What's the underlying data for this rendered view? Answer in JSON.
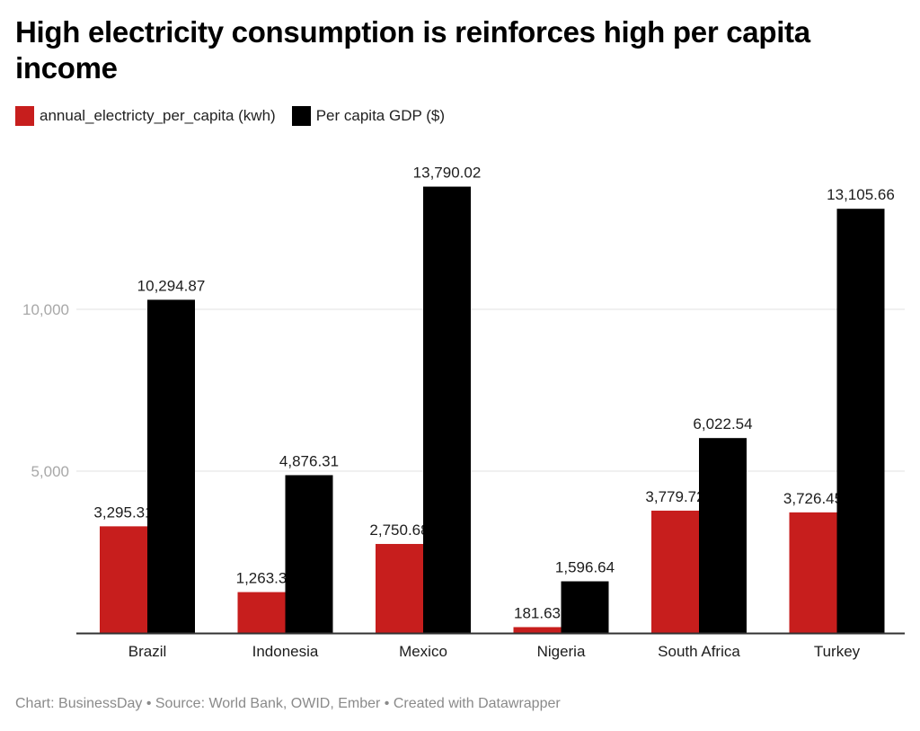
{
  "title": "High electricity consumption is reinforces high per capita income",
  "legend": [
    {
      "label": "annual_electricty_per_capita (kwh)",
      "color": "#c71e1d"
    },
    {
      "label": "Per capita GDP ($)",
      "color": "#000000"
    }
  ],
  "footer": "Chart: BusinessDay • Source: World Bank, OWID, Ember • Created with Datawrapper",
  "chart_data": {
    "type": "bar",
    "title": "High electricity consumption is reinforces high per capita income",
    "xlabel": "",
    "ylabel": "",
    "categories": [
      "Brazil",
      "Indonesia",
      "Mexico",
      "Nigeria",
      "South Africa",
      "Turkey"
    ],
    "series": [
      {
        "name": "annual_electricty_per_capita (kwh)",
        "color": "#c71e1d",
        "values": [
          3295.31,
          1263.3,
          2750.68,
          181.63,
          3779.72,
          3726.45
        ],
        "labels": [
          "3,295.31",
          "1,263.3",
          "2,750.68",
          "181.63",
          "3,779.72",
          "3,726.45"
        ]
      },
      {
        "name": "Per capita GDP ($)",
        "color": "#000000",
        "values": [
          10294.87,
          4876.31,
          13790.02,
          1596.64,
          6022.54,
          13105.66
        ],
        "labels": [
          "10,294.87",
          "4,876.31",
          "13,790.02",
          "1,596.64",
          "6,022.54",
          "13,105.66"
        ]
      }
    ],
    "yticks": [
      {
        "value": 5000,
        "label": "5,000"
      },
      {
        "value": 10000,
        "label": "10,000"
      }
    ],
    "ylim": [
      0,
      15000
    ],
    "grid": true,
    "legend_position": "top-left"
  }
}
